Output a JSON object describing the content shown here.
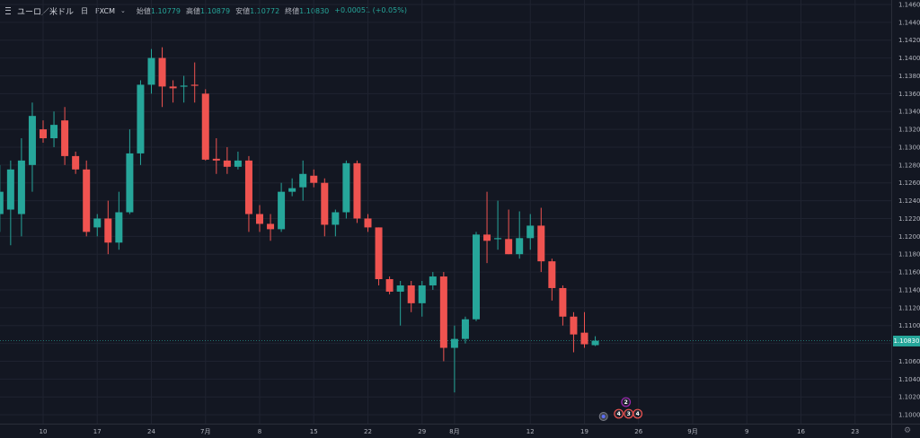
{
  "legend": {
    "symbol": "ユーロ／米ドル",
    "timeframe": "日",
    "source": "FXCM",
    "open_label": "始値",
    "open_value": "1.10779",
    "high_label": "高値",
    "high_value": "1.10879",
    "low_label": "安値",
    "low_value": "1.10772",
    "close_label": "終値",
    "close_value": "1.10830",
    "change": "+0.00051 (+0.05%)"
  },
  "current_price_label": "1.10830",
  "colors": {
    "background": "#131722",
    "grid": "#1f2330",
    "up": "#26a69a",
    "down": "#ef5350",
    "text": "#b2b5be",
    "axis_line": "#2a2e39"
  },
  "icons": {
    "menu": "menu-icon",
    "dropdown": "chevron-down-icon",
    "settings": "gear-icon"
  },
  "chart_data": {
    "type": "candlestick",
    "y_axis": {
      "min": 1.099,
      "max": 1.1465,
      "ticks": [
        1.1,
        1.102,
        1.104,
        1.106,
        1.108,
        1.11,
        1.112,
        1.114,
        1.116,
        1.118,
        1.12,
        1.122,
        1.124,
        1.126,
        1.128,
        1.13,
        1.132,
        1.134,
        1.136,
        1.138,
        1.14,
        1.142,
        1.144,
        1.146
      ],
      "tick_labels": [
        "1.10000",
        "1.10200",
        "1.10400",
        "1.10600",
        "1.10800",
        "1.11000",
        "1.11200",
        "1.11400",
        "1.11600",
        "1.11800",
        "1.12000",
        "1.12200",
        "1.12400",
        "1.12600",
        "1.12800",
        "1.13000",
        "1.13200",
        "1.13400",
        "1.13600",
        "1.13800",
        "1.14000",
        "1.14200",
        "1.14400",
        "1.14600"
      ]
    },
    "x_axis": {
      "labels": [
        {
          "label": "10",
          "date": "2019-06-10"
        },
        {
          "label": "17",
          "date": "2019-06-17"
        },
        {
          "label": "24",
          "date": "2019-06-24"
        },
        {
          "label": "7月",
          "date": "2019-07-01"
        },
        {
          "label": "8",
          "date": "2019-07-08"
        },
        {
          "label": "15",
          "date": "2019-07-15"
        },
        {
          "label": "22",
          "date": "2019-07-22"
        },
        {
          "label": "29",
          "date": "2019-07-29"
        },
        {
          "label": "8月",
          "date": "2019-08-01"
        },
        {
          "label": "12",
          "date": "2019-08-12"
        },
        {
          "label": "19",
          "date": "2019-08-19"
        },
        {
          "label": "26",
          "date": "2019-08-26"
        },
        {
          "label": "9月",
          "date": "2019-09-02"
        },
        {
          "label": "9",
          "date": "2019-09-09"
        },
        {
          "label": "16",
          "date": "2019-09-16"
        },
        {
          "label": "23",
          "date": "2019-09-23"
        }
      ]
    },
    "candles": [
      {
        "date": "2019-06-04",
        "open": 1.1225,
        "high": 1.128,
        "low": 1.1205,
        "close": 1.125
      },
      {
        "date": "2019-06-05",
        "open": 1.123,
        "high": 1.1285,
        "low": 1.119,
        "close": 1.1275
      },
      {
        "date": "2019-06-06",
        "open": 1.1225,
        "high": 1.131,
        "low": 1.12,
        "close": 1.1285
      },
      {
        "date": "2019-06-07",
        "open": 1.128,
        "high": 1.135,
        "low": 1.125,
        "close": 1.1335
      },
      {
        "date": "2019-06-10",
        "open": 1.132,
        "high": 1.133,
        "low": 1.1305,
        "close": 1.131
      },
      {
        "date": "2019-06-11",
        "open": 1.131,
        "high": 1.134,
        "low": 1.13,
        "close": 1.1325
      },
      {
        "date": "2019-06-12",
        "open": 1.133,
        "high": 1.1345,
        "low": 1.128,
        "close": 1.129
      },
      {
        "date": "2019-06-13",
        "open": 1.129,
        "high": 1.1295,
        "low": 1.127,
        "close": 1.1275
      },
      {
        "date": "2019-06-14",
        "open": 1.1275,
        "high": 1.1285,
        "low": 1.12,
        "close": 1.1205
      },
      {
        "date": "2019-06-17",
        "open": 1.121,
        "high": 1.1225,
        "low": 1.12,
        "close": 1.122
      },
      {
        "date": "2019-06-18",
        "open": 1.122,
        "high": 1.124,
        "low": 1.118,
        "close": 1.1193
      },
      {
        "date": "2019-06-19",
        "open": 1.1193,
        "high": 1.125,
        "low": 1.1185,
        "close": 1.1227
      },
      {
        "date": "2019-06-20",
        "open": 1.1227,
        "high": 1.132,
        "low": 1.1225,
        "close": 1.1293
      },
      {
        "date": "2019-06-21",
        "open": 1.1293,
        "high": 1.1375,
        "low": 1.128,
        "close": 1.137
      },
      {
        "date": "2019-06-24",
        "open": 1.137,
        "high": 1.141,
        "low": 1.136,
        "close": 1.14
      },
      {
        "date": "2019-06-25",
        "open": 1.14,
        "high": 1.1412,
        "low": 1.1345,
        "close": 1.1368
      },
      {
        "date": "2019-06-26",
        "open": 1.1368,
        "high": 1.1375,
        "low": 1.135,
        "close": 1.1366
      },
      {
        "date": "2019-06-27",
        "open": 1.1368,
        "high": 1.138,
        "low": 1.135,
        "close": 1.1369
      },
      {
        "date": "2019-06-28",
        "open": 1.137,
        "high": 1.1395,
        "low": 1.135,
        "close": 1.1369
      },
      {
        "date": "2019-07-01",
        "open": 1.136,
        "high": 1.1365,
        "low": 1.1285,
        "close": 1.1286
      },
      {
        "date": "2019-07-02",
        "open": 1.1287,
        "high": 1.131,
        "low": 1.127,
        "close": 1.1285
      },
      {
        "date": "2019-07-03",
        "open": 1.1285,
        "high": 1.13,
        "low": 1.127,
        "close": 1.1278
      },
      {
        "date": "2019-07-04",
        "open": 1.1278,
        "high": 1.1295,
        "low": 1.1275,
        "close": 1.1285
      },
      {
        "date": "2019-07-05",
        "open": 1.1285,
        "high": 1.129,
        "low": 1.1205,
        "close": 1.1225
      },
      {
        "date": "2019-07-08",
        "open": 1.1225,
        "high": 1.1235,
        "low": 1.1205,
        "close": 1.1214
      },
      {
        "date": "2019-07-09",
        "open": 1.1214,
        "high": 1.1225,
        "low": 1.1195,
        "close": 1.1208
      },
      {
        "date": "2019-07-10",
        "open": 1.1208,
        "high": 1.126,
        "low": 1.1205,
        "close": 1.125
      },
      {
        "date": "2019-07-11",
        "open": 1.125,
        "high": 1.1265,
        "low": 1.1245,
        "close": 1.1254
      },
      {
        "date": "2019-07-12",
        "open": 1.1255,
        "high": 1.1285,
        "low": 1.124,
        "close": 1.127
      },
      {
        "date": "2019-07-15",
        "open": 1.1268,
        "high": 1.1275,
        "low": 1.1255,
        "close": 1.126
      },
      {
        "date": "2019-07-16",
        "open": 1.126,
        "high": 1.1265,
        "low": 1.12,
        "close": 1.1213
      },
      {
        "date": "2019-07-17",
        "open": 1.1213,
        "high": 1.123,
        "low": 1.12,
        "close": 1.1227
      },
      {
        "date": "2019-07-18",
        "open": 1.1227,
        "high": 1.1285,
        "low": 1.122,
        "close": 1.1282
      },
      {
        "date": "2019-07-19",
        "open": 1.1282,
        "high": 1.1285,
        "low": 1.1215,
        "close": 1.122
      },
      {
        "date": "2019-07-22",
        "open": 1.122,
        "high": 1.1225,
        "low": 1.1205,
        "close": 1.121
      },
      {
        "date": "2019-07-23",
        "open": 1.121,
        "high": 1.121,
        "low": 1.1145,
        "close": 1.1152
      },
      {
        "date": "2019-07-24",
        "open": 1.1152,
        "high": 1.1155,
        "low": 1.1135,
        "close": 1.1138
      },
      {
        "date": "2019-07-25",
        "open": 1.1138,
        "high": 1.115,
        "low": 1.11,
        "close": 1.1145
      },
      {
        "date": "2019-07-26",
        "open": 1.1145,
        "high": 1.115,
        "low": 1.1115,
        "close": 1.1125
      },
      {
        "date": "2019-07-29",
        "open": 1.1125,
        "high": 1.115,
        "low": 1.111,
        "close": 1.1145
      },
      {
        "date": "2019-07-30",
        "open": 1.1145,
        "high": 1.116,
        "low": 1.114,
        "close": 1.1155
      },
      {
        "date": "2019-07-31",
        "open": 1.1155,
        "high": 1.116,
        "low": 1.106,
        "close": 1.1075
      },
      {
        "date": "2019-08-01",
        "open": 1.1075,
        "high": 1.11,
        "low": 1.1025,
        "close": 1.1085
      },
      {
        "date": "2019-08-02",
        "open": 1.1085,
        "high": 1.111,
        "low": 1.108,
        "close": 1.1107
      },
      {
        "date": "2019-08-05",
        "open": 1.1107,
        "high": 1.1205,
        "low": 1.1105,
        "close": 1.1202
      },
      {
        "date": "2019-08-06",
        "open": 1.1202,
        "high": 1.125,
        "low": 1.117,
        "close": 1.1195
      },
      {
        "date": "2019-08-07",
        "open": 1.1198,
        "high": 1.124,
        "low": 1.1185,
        "close": 1.1198
      },
      {
        "date": "2019-08-08",
        "open": 1.1197,
        "high": 1.123,
        "low": 1.118,
        "close": 1.118
      },
      {
        "date": "2019-08-09",
        "open": 1.118,
        "high": 1.1228,
        "low": 1.1175,
        "close": 1.1198
      },
      {
        "date": "2019-08-12",
        "open": 1.1198,
        "high": 1.1225,
        "low": 1.1185,
        "close": 1.1212
      },
      {
        "date": "2019-08-13",
        "open": 1.1212,
        "high": 1.1232,
        "low": 1.116,
        "close": 1.1172
      },
      {
        "date": "2019-08-14",
        "open": 1.1172,
        "high": 1.1175,
        "low": 1.1128,
        "close": 1.1142
      },
      {
        "date": "2019-08-15",
        "open": 1.1142,
        "high": 1.1145,
        "low": 1.11,
        "close": 1.111
      },
      {
        "date": "2019-08-16",
        "open": 1.111,
        "high": 1.1115,
        "low": 1.107,
        "close": 1.109
      },
      {
        "date": "2019-08-19",
        "open": 1.1092,
        "high": 1.1115,
        "low": 1.1075,
        "close": 1.1079
      },
      {
        "date": "2019-08-20",
        "open": 1.1078,
        "high": 1.1088,
        "low": 1.1077,
        "close": 1.1083
      }
    ],
    "events": [
      {
        "label": "2",
        "date": "2019-08-23"
      },
      {
        "label": "4",
        "date": "2019-08-23"
      },
      {
        "label": "3",
        "date": "2019-08-23"
      },
      {
        "label": "4",
        "date": "2019-08-23"
      }
    ],
    "last_price": 1.1083,
    "grid": true
  }
}
